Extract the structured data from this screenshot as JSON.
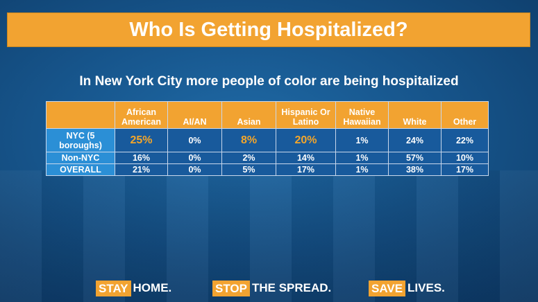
{
  "title": "Who Is Getting Hospitalized?",
  "subtitle": "In New York City more people of color are being hospitalized",
  "table": {
    "headers": [
      "",
      "African American",
      "AI/AN",
      "Asian",
      "Hispanic Or Latino",
      "Native Hawaiian",
      "White",
      "Other"
    ],
    "rows": [
      {
        "label": "NYC (5 boroughs)",
        "values": [
          "25%",
          "0%",
          "8%",
          "20%",
          "1%",
          "24%",
          "22%"
        ]
      },
      {
        "label": "Non-NYC",
        "values": [
          "16%",
          "0%",
          "2%",
          "14%",
          "1%",
          "57%",
          "10%"
        ]
      },
      {
        "label": "OVERALL",
        "values": [
          "21%",
          "0%",
          "5%",
          "17%",
          "1%",
          "38%",
          "17%"
        ]
      }
    ]
  },
  "footer": [
    {
      "highlight": "STAY",
      "rest": "HOME."
    },
    {
      "highlight": "STOP",
      "rest": "THE SPREAD."
    },
    {
      "highlight": "SAVE",
      "rest": "LIVES."
    }
  ],
  "colors": {
    "accent": "#f2a331",
    "background": "#17568d",
    "row_header": "#2b8fd6",
    "highlight_text": "#f4a62a"
  }
}
